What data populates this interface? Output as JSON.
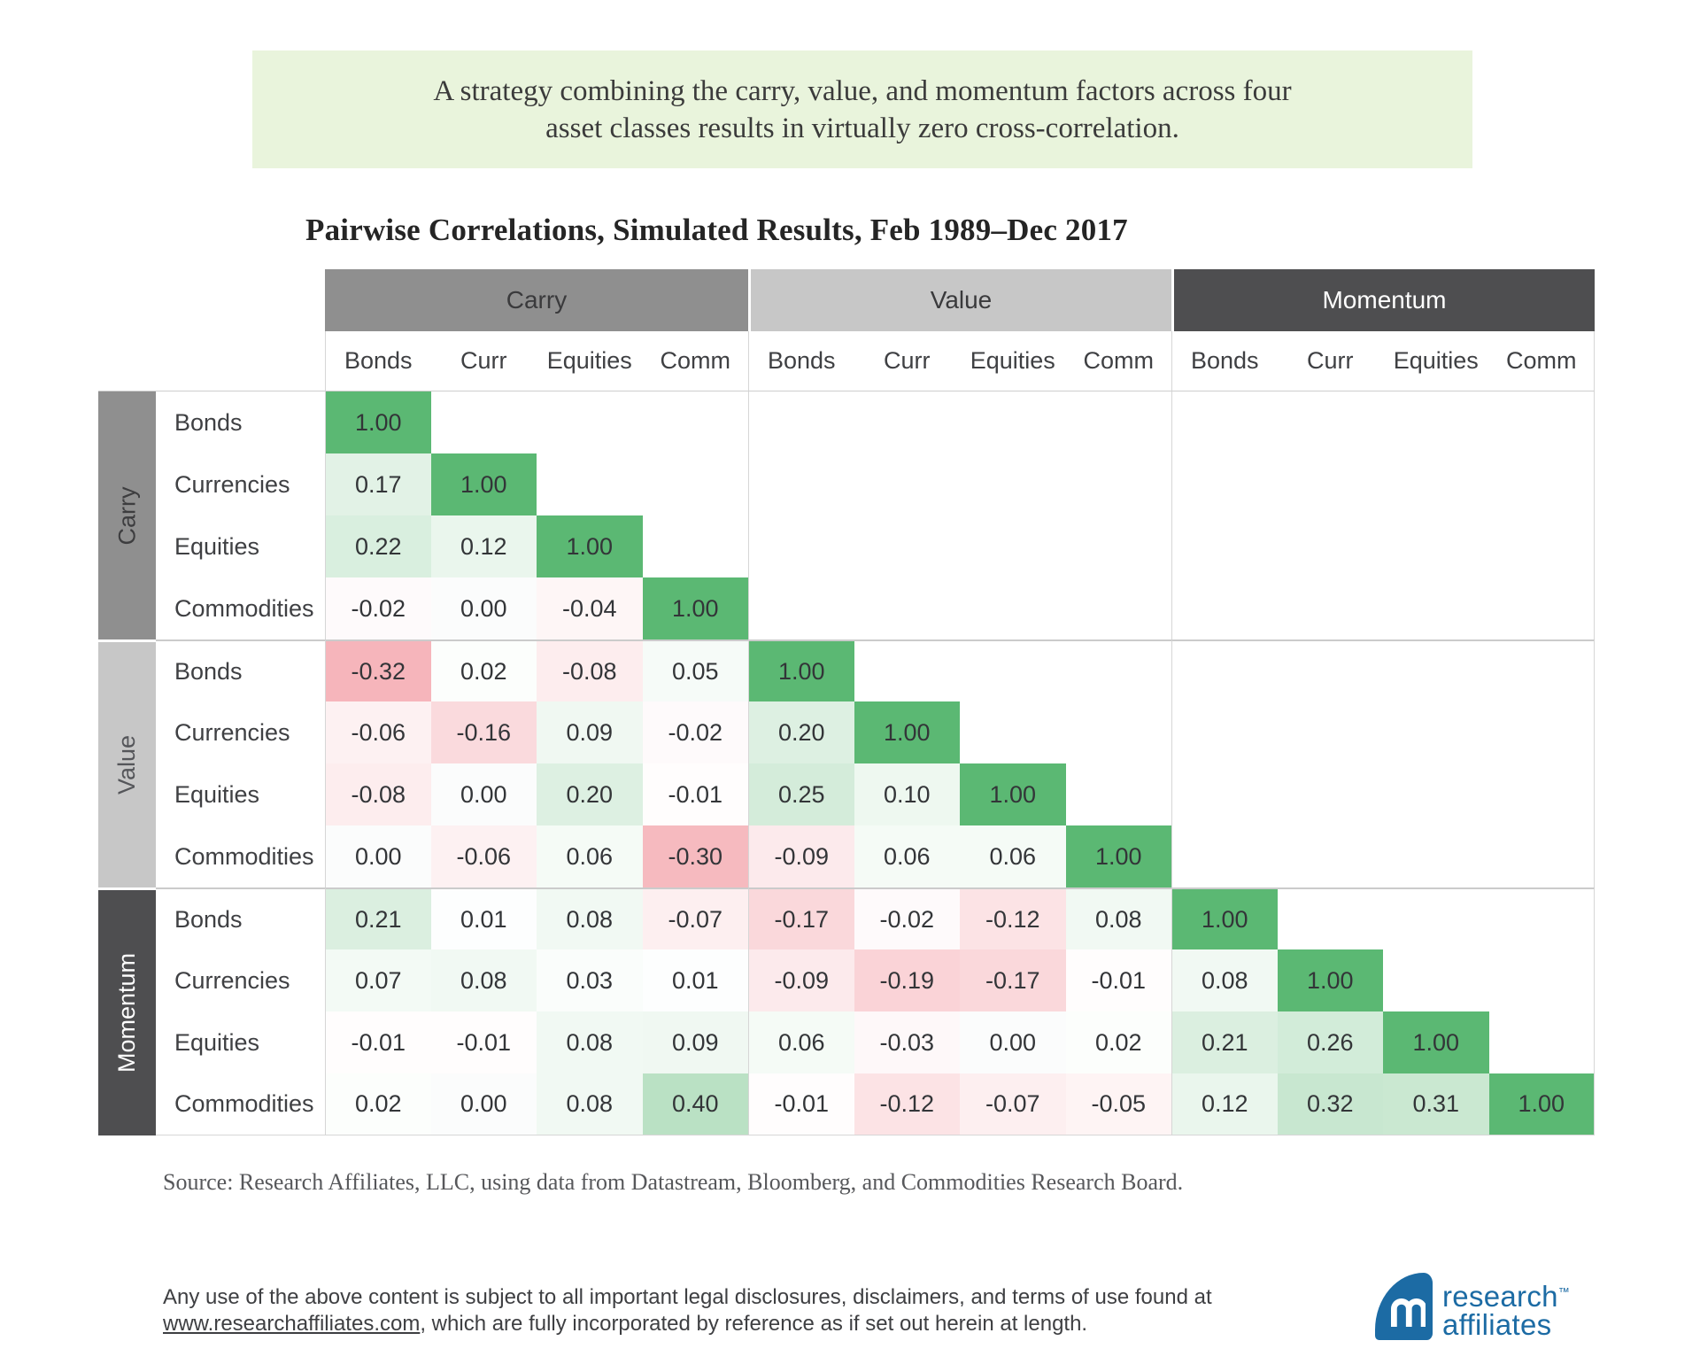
{
  "banner": {
    "line1": "A strategy combining the carry, value, and momentum factors across four",
    "line2": "asset classes results in virtually zero cross-correlation.",
    "bg_color": "#E9F4DC"
  },
  "title": "Pairwise Correlations, Simulated Results, Feb 1989–Dec 2017",
  "source_note": "Source: Research Affiliates, LLC, using data from Datastream, Bloomberg, and Commodities Research Board.",
  "footer": {
    "text_before_link": "Any use of the above content is subject to all important legal disclosures, disclaimers, and terms of use found at",
    "link_text": "www.researchaffiliates.com",
    "text_after_link": ", which are fully incorporated by reference as if set out herein at length."
  },
  "logo": {
    "word1": "research",
    "word2": "affiliates",
    "trademark": "™",
    "brand_color": "#1C6BA4"
  },
  "chart_data": {
    "type": "heatmap",
    "title": "Pairwise Correlations, Simulated Results, Feb 1989–Dec 2017",
    "value_range": [
      -1,
      1
    ],
    "column_groups": [
      {
        "label": "Carry",
        "color": "#8F8F8F",
        "text_color": "#3A3A3C"
      },
      {
        "label": "Value",
        "color": "#C7C7C7",
        "text_color": "#3A3A3C"
      },
      {
        "label": "Momentum",
        "color": "#4E4E50",
        "text_color": "#FFFFFF"
      }
    ],
    "column_headers": [
      "Bonds",
      "Curr",
      "Equities",
      "Comm",
      "Bonds",
      "Curr",
      "Equities",
      "Comm",
      "Bonds",
      "Curr",
      "Equities",
      "Comm"
    ],
    "row_bands": [
      {
        "factor": "Carry",
        "color": "#8F8F8F",
        "text_color": "#3D3D3F",
        "rows": [
          {
            "label": "Bonds",
            "values": [
              1.0
            ]
          },
          {
            "label": "Currencies",
            "values": [
              0.17,
              1.0
            ]
          },
          {
            "label": "Equities",
            "values": [
              0.22,
              0.12,
              1.0
            ]
          },
          {
            "label": "Commodities",
            "values": [
              -0.02,
              0.0,
              -0.04,
              1.0
            ]
          }
        ]
      },
      {
        "factor": "Value",
        "color": "#C7C7C7",
        "text_color": "#55565A",
        "rows": [
          {
            "label": "Bonds",
            "values": [
              -0.32,
              0.02,
              -0.08,
              0.05,
              1.0
            ]
          },
          {
            "label": "Currencies",
            "values": [
              -0.06,
              -0.16,
              0.09,
              -0.02,
              0.2,
              1.0
            ]
          },
          {
            "label": "Equities",
            "values": [
              -0.08,
              0.0,
              0.2,
              -0.01,
              0.25,
              0.1,
              1.0
            ]
          },
          {
            "label": "Commodities",
            "values": [
              0.0,
              -0.06,
              0.06,
              -0.3,
              -0.09,
              0.06,
              0.06,
              1.0
            ]
          }
        ]
      },
      {
        "factor": "Momentum",
        "color": "#4E4E50",
        "text_color": "#FFFFFF",
        "rows": [
          {
            "label": "Bonds",
            "values": [
              0.21,
              0.01,
              0.08,
              -0.07,
              -0.17,
              -0.02,
              -0.12,
              0.08,
              1.0
            ]
          },
          {
            "label": "Currencies",
            "values": [
              0.07,
              0.08,
              0.03,
              0.01,
              -0.09,
              -0.19,
              -0.17,
              -0.01,
              0.08,
              1.0
            ]
          },
          {
            "label": "Equities",
            "values": [
              -0.01,
              -0.01,
              0.08,
              0.09,
              0.06,
              -0.03,
              0.0,
              0.02,
              0.21,
              0.26,
              1.0
            ]
          },
          {
            "label": "Commodities",
            "values": [
              0.02,
              0.0,
              0.08,
              0.4,
              -0.01,
              -0.12,
              -0.07,
              -0.05,
              0.12,
              0.32,
              0.31,
              1.0
            ]
          }
        ]
      }
    ],
    "cell_colors": {
      "diagonal": "#5BB873",
      "positive_full": "#5BB873",
      "negative_full": "#F0868F",
      "zero": "#FBFCFC"
    }
  }
}
